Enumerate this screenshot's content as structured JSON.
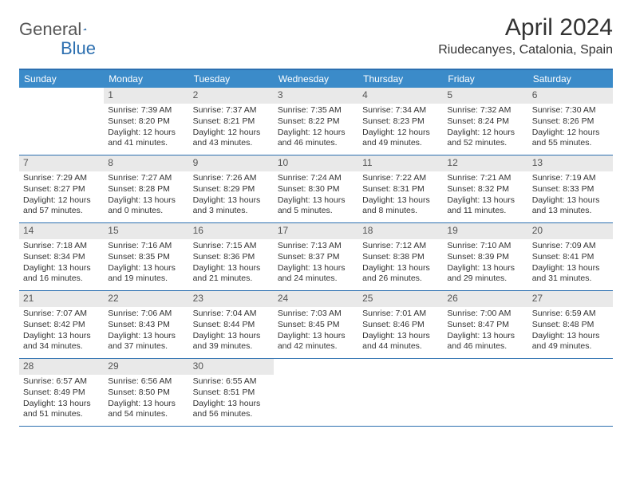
{
  "logo": {
    "general": "General",
    "blue": "Blue"
  },
  "title": "April 2024",
  "location": "Riudecanyes, Catalonia, Spain",
  "colors": {
    "header_bg": "#3b8bc9",
    "border": "#2c6fb0",
    "daynum_bg": "#e9e9e9",
    "text": "#333333",
    "logo_blue": "#2c6fb0",
    "logo_gray": "#555555",
    "white": "#ffffff"
  },
  "daysOfWeek": [
    "Sunday",
    "Monday",
    "Tuesday",
    "Wednesday",
    "Thursday",
    "Friday",
    "Saturday"
  ],
  "weeks": [
    [
      {
        "empty": true
      },
      {
        "num": "1",
        "sunrise": "Sunrise: 7:39 AM",
        "sunset": "Sunset: 8:20 PM",
        "daylight": "Daylight: 12 hours and 41 minutes."
      },
      {
        "num": "2",
        "sunrise": "Sunrise: 7:37 AM",
        "sunset": "Sunset: 8:21 PM",
        "daylight": "Daylight: 12 hours and 43 minutes."
      },
      {
        "num": "3",
        "sunrise": "Sunrise: 7:35 AM",
        "sunset": "Sunset: 8:22 PM",
        "daylight": "Daylight: 12 hours and 46 minutes."
      },
      {
        "num": "4",
        "sunrise": "Sunrise: 7:34 AM",
        "sunset": "Sunset: 8:23 PM",
        "daylight": "Daylight: 12 hours and 49 minutes."
      },
      {
        "num": "5",
        "sunrise": "Sunrise: 7:32 AM",
        "sunset": "Sunset: 8:24 PM",
        "daylight": "Daylight: 12 hours and 52 minutes."
      },
      {
        "num": "6",
        "sunrise": "Sunrise: 7:30 AM",
        "sunset": "Sunset: 8:26 PM",
        "daylight": "Daylight: 12 hours and 55 minutes."
      }
    ],
    [
      {
        "num": "7",
        "sunrise": "Sunrise: 7:29 AM",
        "sunset": "Sunset: 8:27 PM",
        "daylight": "Daylight: 12 hours and 57 minutes."
      },
      {
        "num": "8",
        "sunrise": "Sunrise: 7:27 AM",
        "sunset": "Sunset: 8:28 PM",
        "daylight": "Daylight: 13 hours and 0 minutes."
      },
      {
        "num": "9",
        "sunrise": "Sunrise: 7:26 AM",
        "sunset": "Sunset: 8:29 PM",
        "daylight": "Daylight: 13 hours and 3 minutes."
      },
      {
        "num": "10",
        "sunrise": "Sunrise: 7:24 AM",
        "sunset": "Sunset: 8:30 PM",
        "daylight": "Daylight: 13 hours and 5 minutes."
      },
      {
        "num": "11",
        "sunrise": "Sunrise: 7:22 AM",
        "sunset": "Sunset: 8:31 PM",
        "daylight": "Daylight: 13 hours and 8 minutes."
      },
      {
        "num": "12",
        "sunrise": "Sunrise: 7:21 AM",
        "sunset": "Sunset: 8:32 PM",
        "daylight": "Daylight: 13 hours and 11 minutes."
      },
      {
        "num": "13",
        "sunrise": "Sunrise: 7:19 AM",
        "sunset": "Sunset: 8:33 PM",
        "daylight": "Daylight: 13 hours and 13 minutes."
      }
    ],
    [
      {
        "num": "14",
        "sunrise": "Sunrise: 7:18 AM",
        "sunset": "Sunset: 8:34 PM",
        "daylight": "Daylight: 13 hours and 16 minutes."
      },
      {
        "num": "15",
        "sunrise": "Sunrise: 7:16 AM",
        "sunset": "Sunset: 8:35 PM",
        "daylight": "Daylight: 13 hours and 19 minutes."
      },
      {
        "num": "16",
        "sunrise": "Sunrise: 7:15 AM",
        "sunset": "Sunset: 8:36 PM",
        "daylight": "Daylight: 13 hours and 21 minutes."
      },
      {
        "num": "17",
        "sunrise": "Sunrise: 7:13 AM",
        "sunset": "Sunset: 8:37 PM",
        "daylight": "Daylight: 13 hours and 24 minutes."
      },
      {
        "num": "18",
        "sunrise": "Sunrise: 7:12 AM",
        "sunset": "Sunset: 8:38 PM",
        "daylight": "Daylight: 13 hours and 26 minutes."
      },
      {
        "num": "19",
        "sunrise": "Sunrise: 7:10 AM",
        "sunset": "Sunset: 8:39 PM",
        "daylight": "Daylight: 13 hours and 29 minutes."
      },
      {
        "num": "20",
        "sunrise": "Sunrise: 7:09 AM",
        "sunset": "Sunset: 8:41 PM",
        "daylight": "Daylight: 13 hours and 31 minutes."
      }
    ],
    [
      {
        "num": "21",
        "sunrise": "Sunrise: 7:07 AM",
        "sunset": "Sunset: 8:42 PM",
        "daylight": "Daylight: 13 hours and 34 minutes."
      },
      {
        "num": "22",
        "sunrise": "Sunrise: 7:06 AM",
        "sunset": "Sunset: 8:43 PM",
        "daylight": "Daylight: 13 hours and 37 minutes."
      },
      {
        "num": "23",
        "sunrise": "Sunrise: 7:04 AM",
        "sunset": "Sunset: 8:44 PM",
        "daylight": "Daylight: 13 hours and 39 minutes."
      },
      {
        "num": "24",
        "sunrise": "Sunrise: 7:03 AM",
        "sunset": "Sunset: 8:45 PM",
        "daylight": "Daylight: 13 hours and 42 minutes."
      },
      {
        "num": "25",
        "sunrise": "Sunrise: 7:01 AM",
        "sunset": "Sunset: 8:46 PM",
        "daylight": "Daylight: 13 hours and 44 minutes."
      },
      {
        "num": "26",
        "sunrise": "Sunrise: 7:00 AM",
        "sunset": "Sunset: 8:47 PM",
        "daylight": "Daylight: 13 hours and 46 minutes."
      },
      {
        "num": "27",
        "sunrise": "Sunrise: 6:59 AM",
        "sunset": "Sunset: 8:48 PM",
        "daylight": "Daylight: 13 hours and 49 minutes."
      }
    ],
    [
      {
        "num": "28",
        "sunrise": "Sunrise: 6:57 AM",
        "sunset": "Sunset: 8:49 PM",
        "daylight": "Daylight: 13 hours and 51 minutes."
      },
      {
        "num": "29",
        "sunrise": "Sunrise: 6:56 AM",
        "sunset": "Sunset: 8:50 PM",
        "daylight": "Daylight: 13 hours and 54 minutes."
      },
      {
        "num": "30",
        "sunrise": "Sunrise: 6:55 AM",
        "sunset": "Sunset: 8:51 PM",
        "daylight": "Daylight: 13 hours and 56 minutes."
      },
      {
        "empty": true
      },
      {
        "empty": true
      },
      {
        "empty": true
      },
      {
        "empty": true
      }
    ]
  ]
}
